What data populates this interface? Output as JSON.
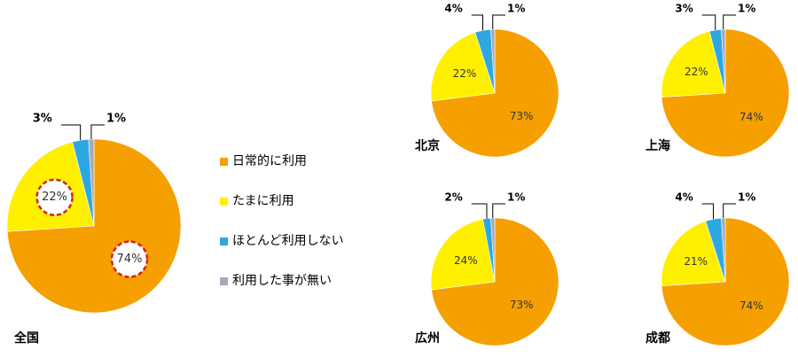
{
  "chart_data": [
    {
      "type": "pie",
      "title": "全国",
      "categories": [
        "日常的に利用",
        "たまに利用",
        "ほとんど利用しない",
        "利用した事が無い"
      ],
      "colors": [
        "#f5a000",
        "#fff000",
        "#2ea7e0",
        "#a4abba"
      ],
      "values": [
        74,
        22,
        3,
        1
      ],
      "value_labels": [
        "74%",
        "22%",
        "3%",
        "1%"
      ]
    },
    {
      "type": "pie",
      "title": "北京",
      "values": [
        73,
        22,
        4,
        1
      ],
      "value_labels": [
        "73%",
        "22%",
        "4%",
        "1%"
      ]
    },
    {
      "type": "pie",
      "title": "上海",
      "values": [
        74,
        22,
        3,
        1
      ],
      "value_labels": [
        "74%",
        "22%",
        "3%",
        "1%"
      ]
    },
    {
      "type": "pie",
      "title": "広州",
      "values": [
        73,
        24,
        2,
        1
      ],
      "value_labels": [
        "73%",
        "24%",
        "2%",
        "1%"
      ]
    },
    {
      "type": "pie",
      "title": "成都",
      "values": [
        74,
        21,
        4,
        1
      ],
      "value_labels": [
        "74%",
        "21%",
        "4%",
        "1%"
      ]
    }
  ]
}
